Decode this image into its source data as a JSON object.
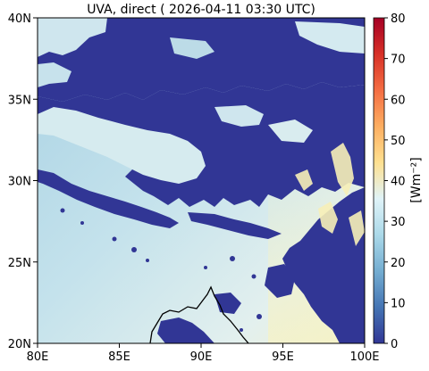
{
  "chart_data": {
    "type": "heatmap",
    "title": "UVA, direct ( 2026-04-11 03:30 UTC)",
    "x_ticks": [
      "80E",
      "85E",
      "90E",
      "95E",
      "100E"
    ],
    "y_ticks": [
      "20N",
      "25N",
      "30N",
      "35N",
      "40N"
    ],
    "xlim": [
      80,
      100
    ],
    "ylim": [
      20,
      40
    ],
    "colorbar": {
      "label": "[Wm⁻²]",
      "min": 0,
      "max": 80,
      "ticks": [
        "0",
        "10",
        "20",
        "30",
        "40",
        "50",
        "60",
        "70",
        "80"
      ],
      "colormap": "RdYlBu_r"
    },
    "field_description": {
      "cloud_value": 0,
      "clear_sky_values_range": [
        22,
        40
      ],
      "brightest_values_region": "south-east around 95E-100E, 20N-31N"
    },
    "coastline": "Bay of Bengal / Bangladesh coast near 88E-93E, 20N-22N"
  },
  "colors": {
    "cloud": "#313695",
    "clear_low": "#b7d9e7",
    "clear_mid": "#d9ecf1",
    "clear_high": "#f6f2c4",
    "colorbar_stops": [
      "#313695",
      "#4575b4",
      "#74add1",
      "#abd9e9",
      "#e0f3f8",
      "#fee090",
      "#fdae61",
      "#f46d43",
      "#d73027",
      "#a50026"
    ]
  }
}
